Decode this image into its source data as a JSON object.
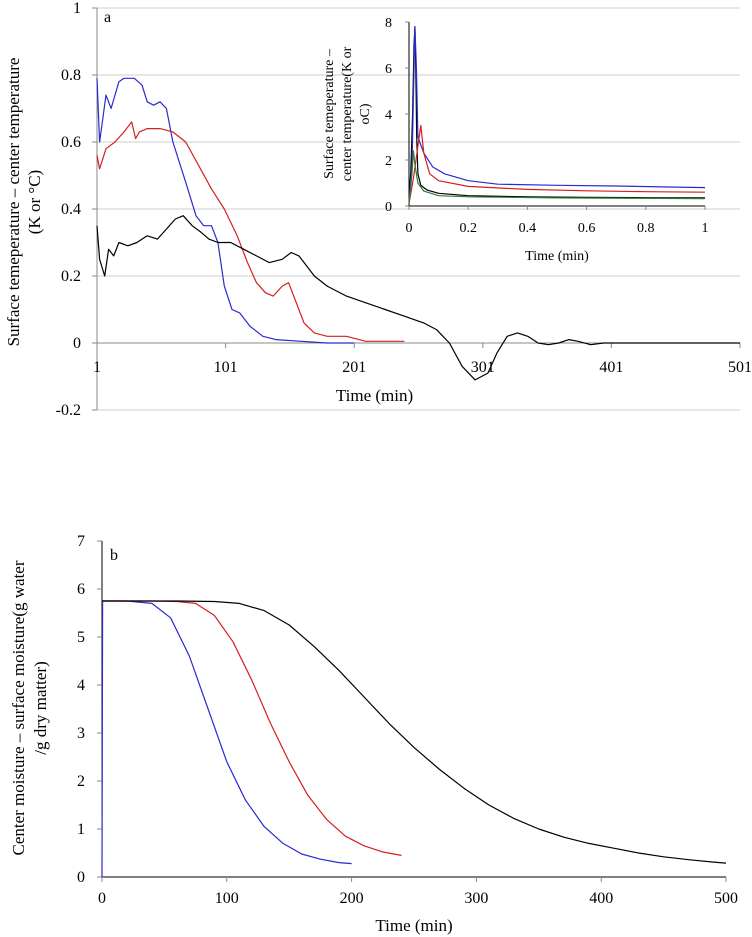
{
  "chart_data": [
    {
      "panel": "a",
      "type": "line",
      "xlabel": "Time (min)",
      "ylabel_lines": [
        "Surface temeperature –  center temperature",
        "(K or °C)"
      ],
      "xlim": [
        1,
        501
      ],
      "ylim": [
        -0.2,
        1
      ],
      "xticks": [
        "1",
        "101",
        "201",
        "301",
        "401",
        "501"
      ],
      "yticks": [
        "-0.2",
        "0",
        "0.2",
        "0.4",
        "0.6",
        "0.8",
        "1"
      ],
      "grid": "horizontal",
      "series": [
        {
          "color": "#2a2ad0",
          "points": [
            [
              1,
              0.79
            ],
            [
              3,
              0.6
            ],
            [
              8,
              0.74
            ],
            [
              12,
              0.7
            ],
            [
              18,
              0.78
            ],
            [
              22,
              0.79
            ],
            [
              30,
              0.79
            ],
            [
              36,
              0.77
            ],
            [
              40,
              0.72
            ],
            [
              45,
              0.71
            ],
            [
              50,
              0.72
            ],
            [
              55,
              0.7
            ],
            [
              60,
              0.6
            ],
            [
              70,
              0.48
            ],
            [
              78,
              0.38
            ],
            [
              84,
              0.35
            ],
            [
              90,
              0.35
            ],
            [
              95,
              0.3
            ],
            [
              100,
              0.17
            ],
            [
              106,
              0.1
            ],
            [
              112,
              0.09
            ],
            [
              120,
              0.05
            ],
            [
              130,
              0.02
            ],
            [
              140,
              0.01
            ],
            [
              160,
              0.005
            ],
            [
              180,
              0.0
            ],
            [
              201,
              0.0
            ]
          ]
        },
        {
          "color": "#d42020",
          "points": [
            [
              1,
              0.56
            ],
            [
              3,
              0.52
            ],
            [
              8,
              0.58
            ],
            [
              15,
              0.6
            ],
            [
              22,
              0.63
            ],
            [
              28,
              0.66
            ],
            [
              31,
              0.61
            ],
            [
              34,
              0.63
            ],
            [
              40,
              0.64
            ],
            [
              50,
              0.64
            ],
            [
              60,
              0.63
            ],
            [
              70,
              0.6
            ],
            [
              80,
              0.53
            ],
            [
              90,
              0.46
            ],
            [
              100,
              0.4
            ],
            [
              110,
              0.32
            ],
            [
              118,
              0.24
            ],
            [
              125,
              0.18
            ],
            [
              132,
              0.15
            ],
            [
              138,
              0.14
            ],
            [
              145,
              0.17
            ],
            [
              150,
              0.18
            ],
            [
              155,
              0.13
            ],
            [
              162,
              0.06
            ],
            [
              170,
              0.03
            ],
            [
              180,
              0.02
            ],
            [
              195,
              0.02
            ],
            [
              210,
              0.005
            ],
            [
              230,
              0.005
            ],
            [
              240,
              0.005
            ]
          ]
        },
        {
          "color": "#000000",
          "points": [
            [
              1,
              0.35
            ],
            [
              3,
              0.25
            ],
            [
              7,
              0.2
            ],
            [
              10,
              0.28
            ],
            [
              14,
              0.26
            ],
            [
              18,
              0.3
            ],
            [
              25,
              0.29
            ],
            [
              32,
              0.3
            ],
            [
              40,
              0.32
            ],
            [
              48,
              0.31
            ],
            [
              55,
              0.34
            ],
            [
              62,
              0.37
            ],
            [
              68,
              0.38
            ],
            [
              75,
              0.35
            ],
            [
              82,
              0.33
            ],
            [
              88,
              0.31
            ],
            [
              95,
              0.3
            ],
            [
              105,
              0.3
            ],
            [
              115,
              0.28
            ],
            [
              125,
              0.26
            ],
            [
              135,
              0.24
            ],
            [
              145,
              0.25
            ],
            [
              152,
              0.27
            ],
            [
              158,
              0.26
            ],
            [
              164,
              0.23
            ],
            [
              170,
              0.2
            ],
            [
              180,
              0.17
            ],
            [
              195,
              0.14
            ],
            [
              210,
              0.12
            ],
            [
              225,
              0.1
            ],
            [
              240,
              0.08
            ],
            [
              255,
              0.06
            ],
            [
              265,
              0.04
            ],
            [
              275,
              0.0
            ],
            [
              285,
              -0.07
            ],
            [
              295,
              -0.11
            ],
            [
              305,
              -0.09
            ],
            [
              312,
              -0.03
            ],
            [
              320,
              0.02
            ],
            [
              328,
              0.03
            ],
            [
              336,
              0.02
            ],
            [
              344,
              0.0
            ],
            [
              352,
              -0.005
            ],
            [
              360,
              0.0
            ],
            [
              368,
              0.01
            ],
            [
              375,
              0.005
            ],
            [
              385,
              -0.005
            ],
            [
              395,
              0.0
            ],
            [
              420,
              0.0
            ],
            [
              460,
              0.0
            ],
            [
              501,
              0.0
            ]
          ]
        }
      ]
    },
    {
      "panel": "a-inset",
      "type": "line",
      "xlabel": "Time (min)",
      "ylabel_lines": [
        "Surface temeperature –",
        "center temperature(K or",
        "oC)"
      ],
      "xlim": [
        0,
        1
      ],
      "ylim": [
        0,
        8
      ],
      "xticks": [
        "0",
        "0.2",
        "0.4",
        "0.6",
        "0.8",
        "1"
      ],
      "yticks": [
        "0",
        "2",
        "4",
        "6",
        "8"
      ],
      "series": [
        {
          "color": "#000000",
          "points": [
            [
              0,
              0.2
            ],
            [
              0.006,
              1.5
            ],
            [
              0.012,
              4
            ],
            [
              0.017,
              7
            ],
            [
              0.02,
              7.8
            ],
            [
              0.023,
              6
            ],
            [
              0.026,
              3
            ],
            [
              0.03,
              1.4
            ],
            [
              0.04,
              0.9
            ],
            [
              0.06,
              0.7
            ],
            [
              0.1,
              0.55
            ],
            [
              0.2,
              0.45
            ],
            [
              0.4,
              0.4
            ],
            [
              0.6,
              0.38
            ],
            [
              0.8,
              0.36
            ],
            [
              1,
              0.35
            ]
          ]
        },
        {
          "color": "#2a2ad0",
          "points": [
            [
              0,
              0.1
            ],
            [
              0.01,
              1.8
            ],
            [
              0.02,
              7.8
            ],
            [
              0.025,
              6
            ],
            [
              0.03,
              3
            ],
            [
              0.05,
              2.3
            ],
            [
              0.08,
              1.7
            ],
            [
              0.12,
              1.4
            ],
            [
              0.2,
              1.1
            ],
            [
              0.3,
              0.95
            ],
            [
              0.5,
              0.9
            ],
            [
              0.7,
              0.87
            ],
            [
              1,
              0.8
            ]
          ]
        },
        {
          "color": "#d42020",
          "points": [
            [
              0,
              0.1
            ],
            [
              0.015,
              1.2
            ],
            [
              0.03,
              2.6
            ],
            [
              0.04,
              3.5
            ],
            [
              0.05,
              2.3
            ],
            [
              0.07,
              1.4
            ],
            [
              0.1,
              1.1
            ],
            [
              0.2,
              0.85
            ],
            [
              0.4,
              0.72
            ],
            [
              0.6,
              0.66
            ],
            [
              0.8,
              0.62
            ],
            [
              1,
              0.6
            ]
          ]
        },
        {
          "color": "#2e7d32",
          "points": [
            [
              0,
              0.1
            ],
            [
              0.01,
              1.4
            ],
            [
              0.015,
              2.4
            ],
            [
              0.02,
              1.8
            ],
            [
              0.03,
              1.0
            ],
            [
              0.05,
              0.65
            ],
            [
              0.1,
              0.45
            ],
            [
              0.2,
              0.4
            ],
            [
              0.5,
              0.35
            ],
            [
              1,
              0.32
            ]
          ]
        }
      ]
    },
    {
      "panel": "b",
      "type": "line",
      "xlabel": "Time (min)",
      "ylabel_lines": [
        "Center moisture – surface moisture(g water",
        "/g dry matter)"
      ],
      "xlim": [
        0,
        500
      ],
      "ylim": [
        0,
        7
      ],
      "xticks": [
        "0",
        "100",
        "200",
        "300",
        "400",
        "500"
      ],
      "yticks": [
        "0",
        "1",
        "2",
        "3",
        "4",
        "5",
        "6",
        "7"
      ],
      "grid": "none",
      "series": [
        {
          "color": "#2a2ad0",
          "points": [
            [
              0,
              0
            ],
            [
              0.5,
              5.75
            ],
            [
              20,
              5.75
            ],
            [
              40,
              5.7
            ],
            [
              55,
              5.4
            ],
            [
              70,
              4.6
            ],
            [
              85,
              3.5
            ],
            [
              100,
              2.4
            ],
            [
              115,
              1.6
            ],
            [
              130,
              1.05
            ],
            [
              145,
              0.7
            ],
            [
              160,
              0.48
            ],
            [
              175,
              0.37
            ],
            [
              190,
              0.3
            ],
            [
              200,
              0.28
            ]
          ]
        },
        {
          "color": "#d42020",
          "points": [
            [
              0,
              5.75
            ],
            [
              40,
              5.75
            ],
            [
              60,
              5.74
            ],
            [
              75,
              5.7
            ],
            [
              90,
              5.45
            ],
            [
              105,
              4.9
            ],
            [
              120,
              4.1
            ],
            [
              135,
              3.2
            ],
            [
              150,
              2.4
            ],
            [
              165,
              1.7
            ],
            [
              180,
              1.2
            ],
            [
              195,
              0.85
            ],
            [
              210,
              0.65
            ],
            [
              225,
              0.52
            ],
            [
              240,
              0.45
            ]
          ]
        },
        {
          "color": "#000000",
          "points": [
            [
              0,
              5.75
            ],
            [
              60,
              5.75
            ],
            [
              90,
              5.74
            ],
            [
              110,
              5.7
            ],
            [
              130,
              5.55
            ],
            [
              150,
              5.25
            ],
            [
              170,
              4.8
            ],
            [
              190,
              4.3
            ],
            [
              210,
              3.75
            ],
            [
              230,
              3.2
            ],
            [
              250,
              2.7
            ],
            [
              270,
              2.25
            ],
            [
              290,
              1.85
            ],
            [
              310,
              1.5
            ],
            [
              330,
              1.22
            ],
            [
              350,
              1.0
            ],
            [
              370,
              0.83
            ],
            [
              390,
              0.7
            ],
            [
              410,
              0.6
            ],
            [
              430,
              0.5
            ],
            [
              450,
              0.42
            ],
            [
              470,
              0.36
            ],
            [
              490,
              0.31
            ],
            [
              500,
              0.29
            ]
          ]
        }
      ]
    }
  ]
}
